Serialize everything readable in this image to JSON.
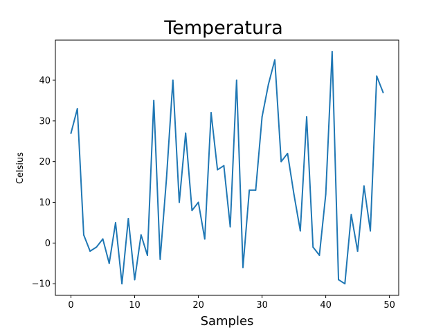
{
  "chart_data": {
    "type": "line",
    "title": "Temperatura",
    "xlabel": "Samples",
    "ylabel": "Celsius",
    "x": [
      0,
      1,
      2,
      3,
      4,
      5,
      6,
      7,
      8,
      9,
      10,
      11,
      12,
      13,
      14,
      15,
      16,
      17,
      18,
      19,
      20,
      21,
      22,
      23,
      24,
      25,
      26,
      27,
      28,
      29,
      30,
      31,
      32,
      33,
      34,
      35,
      36,
      37,
      38,
      39,
      40,
      41,
      42,
      43,
      44,
      45,
      46,
      47,
      48,
      49
    ],
    "series": [
      {
        "values": [
          27,
          33,
          2,
          -2,
          -1,
          1,
          -5,
          5,
          -10,
          6,
          -9,
          2,
          -3,
          35,
          -4,
          16,
          40,
          10,
          27,
          8,
          10,
          1,
          32,
          18,
          19,
          4,
          40,
          -6,
          13,
          13,
          31,
          39,
          45,
          20,
          22,
          12,
          3,
          31,
          -1,
          -3,
          12,
          47,
          -9,
          -10,
          7,
          -2,
          14,
          3,
          41,
          37
        ],
        "color": "#1f77b4"
      }
    ],
    "xlim": [
      -2.45,
      51.45
    ],
    "ylim": [
      -12.85,
      49.85
    ],
    "xticks": [
      0,
      10,
      20,
      30,
      40,
      50
    ],
    "yticks": [
      -10,
      0,
      10,
      20,
      30,
      40
    ],
    "grid": false,
    "legend": false
  }
}
